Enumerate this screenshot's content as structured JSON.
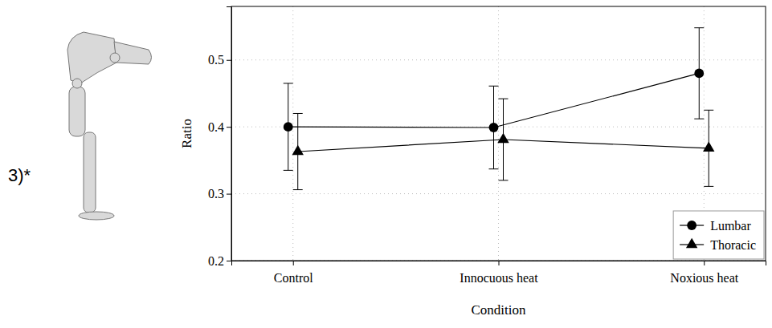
{
  "chart_data": {
    "type": "line",
    "title": "3)*",
    "x_label": "Condition",
    "y_label": "Ratio",
    "categories": [
      "Control",
      "Innocuous heat",
      "Noxious heat"
    ],
    "series": [
      {
        "name": "Lumbar",
        "color": "#000000",
        "marker": "circle",
        "line_style": "solid",
        "values": [
          0.4,
          0.399,
          0.48
        ],
        "errors": [
          0.065,
          0.062,
          0.068
        ]
      },
      {
        "name": "Thoracic",
        "color": "#000000",
        "marker": "triangle",
        "line_style": "solid",
        "values": [
          0.363,
          0.381,
          0.368
        ],
        "errors": [
          0.057,
          0.061,
          0.057
        ]
      }
    ],
    "ylim": [
      0.2,
      0.58
    ],
    "yticks": [
      0.2,
      0.3,
      0.4,
      0.5
    ],
    "grid": true,
    "legend": "lower right"
  }
}
